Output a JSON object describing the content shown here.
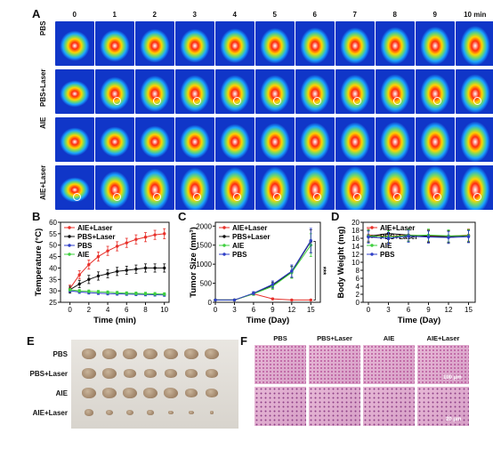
{
  "panels": {
    "A": {
      "letter": "A",
      "time_labels": [
        "0",
        "1",
        "2",
        "3",
        "4",
        "5",
        "6",
        "7",
        "8",
        "9",
        "10 min"
      ],
      "row_labels": [
        "PBS",
        "PBS+Laser",
        "AIE",
        "AIE+Laser"
      ],
      "intensity": [
        [
          0.35,
          0.4,
          0.45,
          0.45,
          0.48,
          0.5,
          0.52,
          0.52,
          0.55,
          0.58,
          0.62
        ],
        [
          0.25,
          0.45,
          0.52,
          0.55,
          0.55,
          0.55,
          0.58,
          0.58,
          0.6,
          0.6,
          0.6
        ],
        [
          0.3,
          0.35,
          0.4,
          0.45,
          0.5,
          0.55,
          0.58,
          0.6,
          0.62,
          0.62,
          0.65
        ],
        [
          0.2,
          0.55,
          0.7,
          0.75,
          0.78,
          0.8,
          0.8,
          0.82,
          0.82,
          0.85,
          0.85
        ]
      ]
    },
    "B": {
      "letter": "B"
    },
    "C": {
      "letter": "C"
    },
    "D": {
      "letter": "D"
    },
    "E": {
      "letter": "E",
      "row_labels": [
        "PBS",
        "PBS+Laser",
        "AIE",
        "AIE+Laser"
      ],
      "tumor_size": [
        [
          1.0,
          1.0,
          1.0,
          1.0,
          1.0,
          1.0,
          1.0
        ],
        [
          0.95,
          0.95,
          0.9,
          0.9,
          0.9,
          0.9,
          0.85
        ],
        [
          1.0,
          0.95,
          0.95,
          0.95,
          0.95,
          0.9,
          0.9
        ],
        [
          0.6,
          0.55,
          0.5,
          0.45,
          0.4,
          0.35,
          0.3
        ]
      ]
    },
    "F": {
      "letter": "F",
      "col_labels": [
        "PBS",
        "PBS+Laser",
        "AIE",
        "AIE+Laser"
      ],
      "scale_top": "100 μm",
      "scale_bottom": "20 μm"
    }
  },
  "chart_data": [
    {
      "id": "B",
      "type": "line",
      "xlabel": "Time (min)",
      "ylabel": "Temperature (°C)",
      "xlim": [
        -1,
        10.5
      ],
      "ylim": [
        25,
        60
      ],
      "xticks": [
        0,
        2,
        4,
        6,
        8,
        10
      ],
      "yticks": [
        25,
        30,
        35,
        40,
        45,
        50,
        55,
        60
      ],
      "legend_position": "top-left",
      "series": [
        {
          "name": "AIE+Laser",
          "color": "#e8302a",
          "x": [
            0,
            1,
            2,
            3,
            4,
            5,
            6,
            7,
            8,
            9,
            10
          ],
          "y": [
            31,
            37,
            41.5,
            45,
            47.5,
            49.5,
            51,
            52.5,
            53.5,
            54.5,
            55
          ],
          "err": [
            1.5,
            1.8,
            2,
            2,
            2,
            2,
            2,
            2,
            2,
            2,
            2.2
          ]
        },
        {
          "name": "PBS+Laser",
          "color": "#111111",
          "x": [
            0,
            1,
            2,
            3,
            4,
            5,
            6,
            7,
            8,
            9,
            10
          ],
          "y": [
            30.5,
            33,
            35,
            36.5,
            37.5,
            38.5,
            39,
            39.5,
            40,
            40,
            40
          ],
          "err": [
            1.5,
            1.6,
            1.8,
            1.8,
            1.8,
            1.8,
            1.8,
            1.8,
            1.8,
            1.8,
            1.8
          ]
        },
        {
          "name": "PBS",
          "color": "#2f3fc7",
          "x": [
            0,
            1,
            2,
            3,
            4,
            5,
            6,
            7,
            8,
            9,
            10
          ],
          "y": [
            30,
            29.5,
            29.2,
            29,
            28.8,
            28.7,
            28.6,
            28.5,
            28.4,
            28.3,
            28.2
          ],
          "err": [
            0.6,
            0.6,
            0.6,
            0.6,
            0.6,
            0.6,
            0.6,
            0.6,
            0.6,
            0.6,
            0.6
          ]
        },
        {
          "name": "AIE",
          "color": "#3fcf3f",
          "x": [
            0,
            1,
            2,
            3,
            4,
            5,
            6,
            7,
            8,
            9,
            10
          ],
          "y": [
            30.5,
            30,
            29.8,
            29.6,
            29.4,
            29.2,
            29,
            28.9,
            28.8,
            28.7,
            28.6
          ],
          "err": [
            0.6,
            0.6,
            0.6,
            0.6,
            0.6,
            0.6,
            0.6,
            0.6,
            0.6,
            0.6,
            0.6
          ]
        }
      ]
    },
    {
      "id": "C",
      "type": "line",
      "xlabel": "Time (Day)",
      "ylabel": "Tumor Size (mm³)",
      "xlim": [
        0,
        16.5
      ],
      "ylim": [
        0,
        2100
      ],
      "xticks": [
        0,
        3,
        6,
        9,
        12,
        15
      ],
      "yticks": [
        0,
        500,
        1000,
        1500,
        2000
      ],
      "legend_position": "top-left",
      "annotation": "***",
      "series": [
        {
          "name": "AIE+Laser",
          "color": "#e8302a",
          "x": [
            0,
            3,
            6,
            9,
            12,
            15
          ],
          "y": [
            60,
            60,
            220,
            90,
            60,
            60
          ],
          "err": [
            10,
            10,
            30,
            20,
            10,
            10
          ]
        },
        {
          "name": "PBS+Laser",
          "color": "#111111",
          "x": [
            0,
            3,
            6,
            9,
            12,
            15
          ],
          "y": [
            60,
            60,
            230,
            450,
            800,
            1600
          ],
          "err": [
            10,
            10,
            40,
            80,
            150,
            300
          ]
        },
        {
          "name": "AIE",
          "color": "#3fcf3f",
          "x": [
            0,
            3,
            6,
            9,
            12,
            15
          ],
          "y": [
            60,
            60,
            220,
            420,
            780,
            1500
          ],
          "err": [
            10,
            10,
            40,
            80,
            150,
            300
          ]
        },
        {
          "name": "PBS",
          "color": "#2f3fc7",
          "x": [
            0,
            3,
            6,
            9,
            12,
            15
          ],
          "y": [
            60,
            60,
            240,
            470,
            820,
            1620
          ],
          "err": [
            10,
            10,
            40,
            90,
            160,
            320
          ]
        }
      ]
    },
    {
      "id": "D",
      "type": "line",
      "xlabel": "Time (Day)",
      "ylabel": "Body Weight (mg)",
      "xlim": [
        -0.8,
        16
      ],
      "ylim": [
        0,
        20
      ],
      "xticks": [
        0,
        3,
        6,
        9,
        12,
        15
      ],
      "yticks": [
        0,
        2,
        4,
        6,
        8,
        10,
        12,
        14,
        16,
        18,
        20
      ],
      "legend_position": "top-left",
      "series": [
        {
          "name": "AIE+Laser",
          "color": "#e8302a",
          "x": [
            0,
            3,
            6,
            9,
            12,
            15
          ],
          "y": [
            16.8,
            16.5,
            16.8,
            16.6,
            16.5,
            16.8
          ],
          "err": [
            1.5,
            1.5,
            1.5,
            1.5,
            1.5,
            1.5
          ]
        },
        {
          "name": "PBS+Laser",
          "color": "#111111",
          "x": [
            0,
            3,
            6,
            9,
            12,
            15
          ],
          "y": [
            16.5,
            17.2,
            16.8,
            16.5,
            16.4,
            16.6
          ],
          "err": [
            1.5,
            1.5,
            1.5,
            1.5,
            1.5,
            1.5
          ]
        },
        {
          "name": "AIE",
          "color": "#3fcf3f",
          "x": [
            0,
            3,
            6,
            9,
            12,
            15
          ],
          "y": [
            16.6,
            16.4,
            16.7,
            16.8,
            16.6,
            16.7
          ],
          "err": [
            1.5,
            1.5,
            1.5,
            1.5,
            1.5,
            1.5
          ]
        },
        {
          "name": "PBS",
          "color": "#2f3fc7",
          "x": [
            0,
            3,
            6,
            9,
            12,
            15
          ],
          "y": [
            16.3,
            16.0,
            16.5,
            16.3,
            16.2,
            16.4
          ],
          "err": [
            1.5,
            1.5,
            1.5,
            1.5,
            1.5,
            1.5
          ]
        }
      ]
    }
  ]
}
